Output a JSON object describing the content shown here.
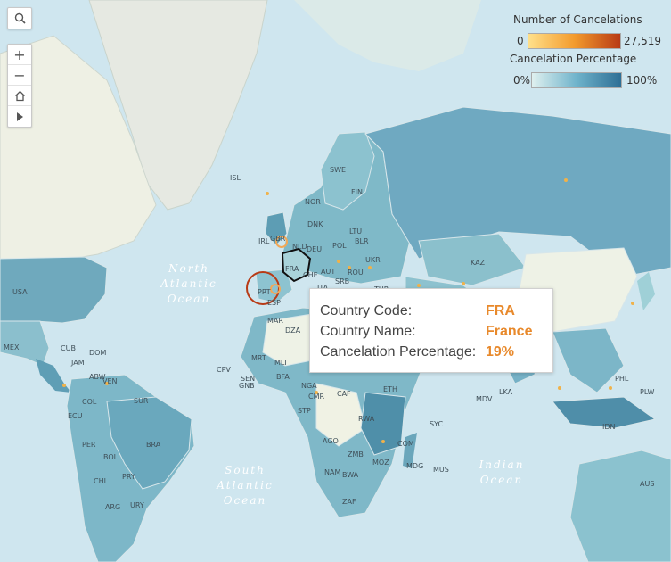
{
  "map_controls": {
    "search_icon": "search-icon",
    "zoom_in": "+",
    "zoom_out": "−",
    "home_icon": "home-icon",
    "play_icon": "play-icon"
  },
  "legend": {
    "count_title": "Number of Cancelations",
    "count_min": "0",
    "count_max": "27,519",
    "count_colors": [
      "#ffe08a",
      "#f39b2d",
      "#b83a15"
    ],
    "pct_title": "Cancelation Percentage",
    "pct_min": "0%",
    "pct_max": "100%",
    "pct_colors": [
      "#dff0ef",
      "#6fb3cb",
      "#2d6f95"
    ]
  },
  "tooltip": {
    "code_label": "Country Code:",
    "code_value": "FRA",
    "name_label": "Country Name:",
    "name_value": "France",
    "pct_label": "Cancelation Percentage:",
    "pct_value": "19%"
  },
  "oceans": {
    "north_atlantic": "North\nAtlantic\nOcean",
    "south_atlantic": "South\nAtlantic\nOcean",
    "indian": "Indian\nOcean"
  },
  "country_labels": [
    "ISL",
    "SWE",
    "FIN",
    "NOR",
    "DNK",
    "IRL",
    "GBR",
    "NLD",
    "DEU",
    "POL",
    "BLR",
    "LTU",
    "UKR",
    "FRA",
    "CHE",
    "AUT",
    "ROU",
    "SRB",
    "ITA",
    "ESP",
    "PRT",
    "GRC",
    "TUR",
    "KAZ",
    "USA",
    "MEX",
    "CUB",
    "JAM",
    "DOM",
    "ABW",
    "VEN",
    "COL",
    "ECU",
    "PER",
    "BRA",
    "BOL",
    "PRY",
    "CHL",
    "ARG",
    "URY",
    "SUR",
    "MAR",
    "DZA",
    "MRT",
    "MLI",
    "SEN",
    "GNB",
    "CPV",
    "NGA",
    "BFA",
    "CMR",
    "CAF",
    "STP",
    "ETH",
    "RWA",
    "AGO",
    "ZMB",
    "NAM",
    "BWA",
    "ZAF",
    "MOZ",
    "MDG",
    "COM",
    "SYC",
    "MUS",
    "MDV",
    "LKA",
    "PHL",
    "PLW",
    "IDN",
    "AUS"
  ]
}
